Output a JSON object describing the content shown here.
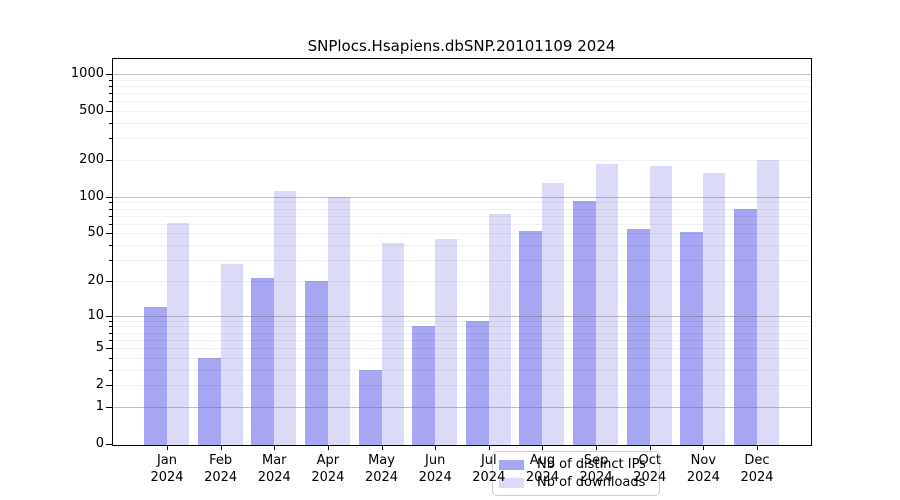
{
  "chart_data": {
    "type": "bar",
    "title": "SNPlocs.Hsapiens.dbSNP.20101109 2024",
    "categories": [
      "Jan",
      "Feb",
      "Mar",
      "Apr",
      "May",
      "Jun",
      "Jul",
      "Aug",
      "Sep",
      "Oct",
      "Nov",
      "Dec"
    ],
    "x_tick_year": "2024",
    "series": [
      {
        "name": "Nb of distinct IPs",
        "color": "#a6a6f2",
        "values": [
          12,
          4,
          21,
          20,
          3,
          8,
          9,
          52,
          93,
          54,
          51,
          79
        ]
      },
      {
        "name": "Nb of downloads",
        "color": "#dbdbf8",
        "values": [
          61,
          28,
          112,
          100,
          42,
          45,
          73,
          130,
          186,
          179,
          157,
          200
        ]
      }
    ],
    "yticks": [
      0,
      1,
      2,
      5,
      10,
      20,
      50,
      100,
      200,
      500,
      1000
    ],
    "scale": "log1p",
    "ylim": [
      0,
      1300
    ],
    "grid": true,
    "legend_position": "inside-bottom-center",
    "plot_background": "#ffffff",
    "spine_color": "#000000"
  }
}
